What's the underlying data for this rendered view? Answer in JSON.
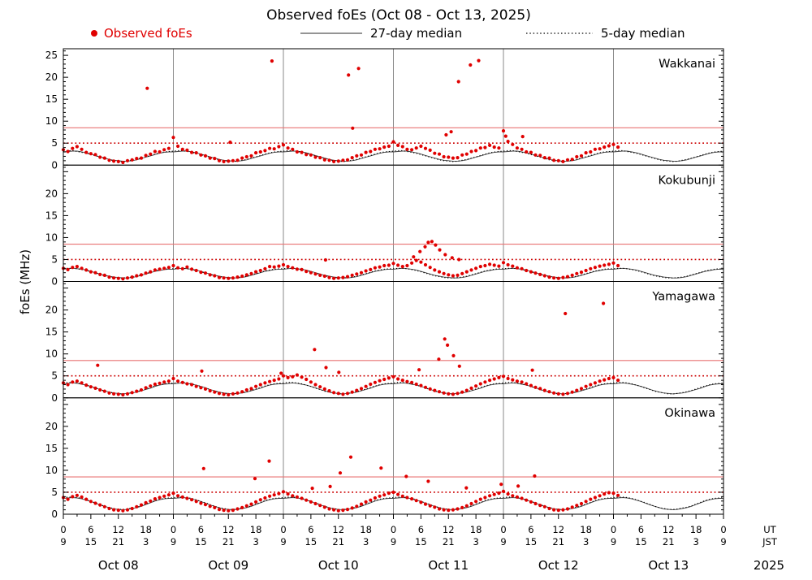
{
  "title": "Observed foEs (Oct 08 - Oct 13, 2025)",
  "legend": {
    "observed": "Observed foEs",
    "median27": "27-day median",
    "median5": "5-day median"
  },
  "y_axis_label": "foEs (MHz)",
  "footer": {
    "dates": [
      "Oct 08",
      "Oct 09",
      "Oct 10",
      "Oct 11",
      "Oct 12",
      "Oct 13"
    ],
    "year": "2025",
    "ut_label": "UT",
    "jst_label": "JST"
  },
  "x_axis": {
    "hours": [
      0,
      6,
      12,
      18,
      24,
      30,
      36,
      42,
      48,
      54,
      60,
      66,
      72,
      78,
      84,
      90,
      96,
      102,
      108,
      114,
      120,
      126,
      132,
      138,
      144
    ],
    "ut": [
      "0",
      "6",
      "12",
      "18",
      "0",
      "6",
      "12",
      "18",
      "0",
      "6",
      "12",
      "18",
      "0",
      "6",
      "12",
      "18",
      "0",
      "6",
      "12",
      "18",
      "0",
      "6",
      "12",
      "18",
      "0"
    ],
    "jst": [
      "9",
      "15",
      "21",
      "3",
      "9",
      "15",
      "21",
      "3",
      "9",
      "15",
      "21",
      "3",
      "9",
      "15",
      "21",
      "3",
      "9",
      "15",
      "21",
      "3",
      "9",
      "15",
      "21",
      "3",
      "9"
    ]
  },
  "chart_data": {
    "type": "scatter",
    "title": "Observed foEs (Oct 08 - Oct 13, 2025)",
    "ylabel": "foEs (MHz)",
    "x_range": [
      0,
      144
    ],
    "y_max": 26.5,
    "grid_hours": [
      24,
      48,
      72,
      96,
      120
    ],
    "point_color": "#e00000",
    "accent_red": "#e00000",
    "reference_lines": [
      {
        "value": 8.5,
        "style": "solid",
        "color": "#e87272"
      },
      {
        "value": 5.0,
        "style": "dotted",
        "color": "#cc0000"
      }
    ],
    "panels": [
      {
        "name": "Wakkanai",
        "yticks": [
          0,
          5,
          10,
          15,
          20,
          25
        ],
        "observed_hourly": [
          3.5,
          3.1,
          3.8,
          4.2,
          3.6,
          2.9,
          2.6,
          2.4,
          1.8,
          1.6,
          1.1,
          0.9,
          0.8,
          0.6,
          1.0,
          1.2,
          1.5,
          1.6,
          2.2,
          2.5,
          3.1,
          3.0,
          3.5,
          3.8,
          6.3,
          4.3,
          3.6,
          3.4,
          2.9,
          2.8,
          2.3,
          2.1,
          1.6,
          1.5,
          1.0,
          0.8,
          0.9,
          1.0,
          1.1,
          1.6,
          1.9,
          2.1,
          2.8,
          3.0,
          3.3,
          3.8,
          3.7,
          4.2,
          4.6,
          3.9,
          3.6,
          3.0,
          2.9,
          2.4,
          2.3,
          1.8,
          1.7,
          1.2,
          1.1,
          0.8,
          0.9,
          1.1,
          1.2,
          1.7,
          2.1,
          2.3,
          2.9,
          3.1,
          3.6,
          3.7,
          4.1,
          4.3,
          5.3,
          4.5,
          4.2,
          3.6,
          3.5,
          3.9,
          4.3,
          3.8,
          3.4,
          2.7,
          2.5,
          1.9,
          1.8,
          1.6,
          1.7,
          2.3,
          2.5,
          3.1,
          3.3,
          3.9,
          4.0,
          4.5,
          4.1,
          3.9,
          7.8,
          5.4,
          4.7,
          3.9,
          3.6,
          3.0,
          2.9,
          2.3,
          2.2,
          1.7,
          1.6,
          1.1,
          1.0,
          0.8,
          1.2,
          1.3,
          1.9,
          2.1,
          2.8,
          3.0,
          3.6,
          3.7,
          4.1,
          4.4,
          4.7,
          4.1
        ],
        "outliers": [
          [
            18.3,
            17.5
          ],
          [
            45.5,
            23.7
          ],
          [
            62.2,
            20.5
          ],
          [
            63.1,
            8.4
          ],
          [
            64.4,
            22.0
          ],
          [
            83.5,
            6.9
          ],
          [
            84.6,
            7.6
          ],
          [
            86.2,
            19.0
          ],
          [
            88.8,
            22.8
          ],
          [
            90.6,
            23.8
          ],
          [
            96.5,
            6.6
          ],
          [
            100.2,
            6.5
          ],
          [
            36.4,
            5.2
          ]
        ],
        "median27_day": [
          3.0,
          3.1,
          3.2,
          3.2,
          3.0,
          2.8,
          2.5,
          2.2,
          1.9,
          1.6,
          1.3,
          1.1,
          1.0,
          0.9,
          0.9,
          1.0,
          1.2,
          1.5,
          1.8,
          2.1,
          2.4,
          2.7,
          2.9,
          3.0
        ],
        "median5_day": [
          3.2,
          3.3,
          3.3,
          3.1,
          2.9,
          2.7,
          2.4,
          2.1,
          1.8,
          1.5,
          1.2,
          1.0,
          0.9,
          0.8,
          0.9,
          1.1,
          1.3,
          1.6,
          1.9,
          2.2,
          2.5,
          2.8,
          3.0,
          3.1
        ]
      },
      {
        "name": "Kokubunji",
        "yticks": [
          0,
          5,
          10,
          15,
          20
        ],
        "observed_hourly": [
          3.0,
          2.7,
          3.2,
          3.4,
          3.0,
          2.6,
          2.2,
          2.0,
          1.6,
          1.4,
          1.0,
          0.8,
          0.7,
          0.6,
          0.8,
          1.0,
          1.3,
          1.5,
          1.9,
          2.2,
          2.6,
          2.8,
          3.0,
          3.2,
          3.6,
          3.1,
          2.9,
          3.3,
          2.8,
          2.5,
          2.1,
          1.9,
          1.5,
          1.3,
          0.9,
          0.8,
          0.7,
          0.8,
          1.0,
          1.2,
          1.5,
          1.8,
          2.2,
          2.5,
          2.9,
          3.4,
          3.3,
          3.5,
          3.8,
          3.4,
          3.1,
          2.8,
          2.7,
          2.3,
          2.0,
          1.7,
          1.4,
          1.2,
          0.9,
          0.7,
          0.8,
          0.9,
          1.1,
          1.4,
          1.7,
          2.0,
          2.4,
          2.7,
          3.1,
          3.3,
          3.6,
          3.7,
          4.1,
          3.7,
          3.4,
          3.6,
          4.2,
          4.8,
          4.4,
          3.8,
          3.2,
          2.6,
          2.2,
          1.8,
          1.5,
          1.3,
          1.4,
          1.8,
          2.2,
          2.6,
          3.0,
          3.4,
          3.6,
          3.9,
          3.7,
          3.5,
          4.3,
          3.8,
          3.5,
          3.1,
          2.9,
          2.5,
          2.2,
          1.9,
          1.6,
          1.3,
          1.0,
          0.8,
          0.7,
          0.9,
          1.1,
          1.4,
          1.8,
          2.1,
          2.5,
          2.9,
          3.2,
          3.5,
          3.7,
          3.9,
          4.2,
          3.6
        ],
        "outliers": [
          [
            57.2,
            4.9
          ],
          [
            76.4,
            5.6
          ],
          [
            77.8,
            6.8
          ],
          [
            78.9,
            7.9
          ],
          [
            79.6,
            8.9
          ],
          [
            80.4,
            9.1
          ],
          [
            81.2,
            8.3
          ],
          [
            82.1,
            7.2
          ],
          [
            83.3,
            6.1
          ],
          [
            84.8,
            5.4
          ],
          [
            86.3,
            5.0
          ]
        ],
        "median27_day": [
          2.8,
          2.9,
          3.0,
          2.9,
          2.8,
          2.6,
          2.3,
          2.0,
          1.7,
          1.4,
          1.2,
          1.0,
          0.9,
          0.8,
          0.8,
          0.9,
          1.1,
          1.4,
          1.7,
          2.0,
          2.3,
          2.5,
          2.7,
          2.8
        ],
        "median5_day": [
          2.9,
          3.0,
          3.0,
          2.9,
          2.7,
          2.5,
          2.2,
          1.9,
          1.6,
          1.3,
          1.1,
          0.9,
          0.8,
          0.8,
          0.9,
          1.0,
          1.2,
          1.5,
          1.8,
          2.1,
          2.4,
          2.6,
          2.8,
          2.9
        ]
      },
      {
        "name": "Yamagawa",
        "yticks": [
          0,
          5,
          10,
          15,
          20
        ],
        "observed_hourly": [
          3.4,
          3.0,
          3.6,
          3.8,
          3.4,
          2.9,
          2.5,
          2.2,
          1.8,
          1.5,
          1.1,
          0.9,
          0.8,
          0.7,
          0.9,
          1.2,
          1.5,
          1.8,
          2.3,
          2.7,
          3.1,
          3.3,
          3.6,
          3.8,
          4.4,
          3.8,
          3.5,
          3.2,
          3.0,
          2.6,
          2.3,
          2.0,
          1.6,
          1.3,
          1.0,
          0.8,
          0.7,
          0.9,
          1.1,
          1.4,
          1.8,
          2.1,
          2.6,
          3.0,
          3.4,
          3.7,
          4.0,
          4.3,
          5.0,
          4.6,
          4.8,
          5.2,
          4.7,
          4.2,
          3.6,
          3.0,
          2.5,
          2.0,
          1.6,
          1.2,
          1.0,
          0.8,
          1.0,
          1.3,
          1.7,
          2.1,
          2.6,
          3.1,
          3.5,
          3.9,
          4.2,
          4.5,
          4.8,
          4.3,
          4.0,
          3.7,
          3.5,
          3.1,
          2.8,
          2.4,
          2.0,
          1.7,
          1.4,
          1.1,
          0.9,
          0.8,
          1.0,
          1.3,
          1.7,
          2.2,
          2.7,
          3.2,
          3.6,
          4.0,
          4.3,
          4.6,
          4.9,
          4.4,
          4.1,
          3.8,
          3.6,
          3.2,
          2.8,
          2.4,
          2.1,
          1.7,
          1.4,
          1.1,
          0.9,
          0.8,
          1.0,
          1.3,
          1.7,
          2.1,
          2.6,
          3.0,
          3.4,
          3.8,
          4.1,
          4.4,
          4.6,
          4.0
        ],
        "outliers": [
          [
            7.5,
            7.4
          ],
          [
            30.2,
            6.1
          ],
          [
            47.5,
            5.6
          ],
          [
            54.8,
            11.0
          ],
          [
            57.3,
            6.9
          ],
          [
            60.1,
            5.8
          ],
          [
            77.6,
            6.4
          ],
          [
            81.9,
            8.8
          ],
          [
            83.2,
            13.4
          ],
          [
            83.8,
            12.0
          ],
          [
            85.1,
            9.6
          ],
          [
            86.4,
            7.2
          ],
          [
            102.3,
            6.3
          ],
          [
            109.5,
            19.2
          ],
          [
            117.8,
            21.5
          ]
        ],
        "median27_day": [
          3.2,
          3.3,
          3.4,
          3.3,
          3.1,
          2.9,
          2.6,
          2.3,
          1.9,
          1.6,
          1.3,
          1.1,
          1.0,
          0.9,
          1.0,
          1.1,
          1.3,
          1.6,
          1.9,
          2.2,
          2.6,
          2.9,
          3.1,
          3.2
        ],
        "median5_day": [
          3.4,
          3.5,
          3.5,
          3.4,
          3.2,
          2.9,
          2.6,
          2.2,
          1.9,
          1.5,
          1.3,
          1.1,
          0.9,
          0.9,
          1.0,
          1.2,
          1.4,
          1.7,
          2.0,
          2.4,
          2.7,
          3.0,
          3.2,
          3.3
        ]
      },
      {
        "name": "Okinawa",
        "yticks": [
          0,
          5,
          10,
          15,
          20
        ],
        "observed_hourly": [
          3.8,
          3.4,
          4.0,
          4.3,
          3.9,
          3.4,
          2.9,
          2.5,
          2.1,
          1.7,
          1.3,
          1.0,
          0.9,
          0.8,
          1.0,
          1.3,
          1.7,
          2.1,
          2.6,
          3.0,
          3.5,
          3.8,
          4.1,
          4.4,
          4.8,
          4.2,
          3.9,
          3.6,
          3.3,
          2.9,
          2.5,
          2.2,
          1.8,
          1.5,
          1.1,
          0.9,
          0.8,
          0.9,
          1.2,
          1.5,
          1.9,
          2.3,
          2.8,
          3.3,
          3.7,
          4.1,
          4.4,
          4.7,
          5.1,
          4.6,
          4.2,
          3.9,
          3.6,
          3.2,
          2.8,
          2.4,
          2.0,
          1.6,
          1.2,
          1.0,
          0.8,
          0.9,
          1.1,
          1.4,
          1.8,
          2.3,
          2.8,
          3.2,
          3.7,
          4.1,
          4.4,
          4.8,
          5.0,
          4.5,
          4.1,
          3.8,
          3.5,
          3.1,
          2.7,
          2.3,
          1.9,
          1.6,
          1.2,
          1.0,
          0.9,
          1.0,
          1.2,
          1.5,
          1.9,
          2.4,
          2.9,
          3.4,
          3.8,
          4.2,
          4.5,
          4.8,
          5.2,
          4.6,
          4.2,
          3.9,
          3.6,
          3.2,
          2.8,
          2.4,
          2.0,
          1.7,
          1.3,
          1.0,
          0.9,
          1.0,
          1.2,
          1.6,
          2.0,
          2.4,
          2.9,
          3.4,
          3.8,
          4.2,
          4.6,
          4.9,
          4.8,
          4.3
        ],
        "outliers": [
          [
            30.6,
            10.4
          ],
          [
            41.8,
            8.1
          ],
          [
            44.9,
            12.1
          ],
          [
            54.3,
            5.9
          ],
          [
            58.2,
            6.3
          ],
          [
            60.4,
            9.4
          ],
          [
            62.7,
            13.0
          ],
          [
            69.3,
            10.5
          ],
          [
            74.8,
            8.6
          ],
          [
            79.6,
            7.5
          ],
          [
            87.9,
            6.0
          ],
          [
            95.5,
            6.8
          ],
          [
            99.2,
            6.4
          ],
          [
            102.8,
            8.7
          ]
        ],
        "median27_day": [
          3.6,
          3.7,
          3.8,
          3.7,
          3.5,
          3.2,
          2.9,
          2.5,
          2.1,
          1.8,
          1.5,
          1.2,
          1.1,
          1.0,
          1.1,
          1.3,
          1.5,
          1.8,
          2.2,
          2.6,
          3.0,
          3.3,
          3.5,
          3.6
        ],
        "median5_day": [
          3.8,
          3.9,
          3.9,
          3.8,
          3.6,
          3.3,
          2.9,
          2.6,
          2.2,
          1.8,
          1.5,
          1.3,
          1.1,
          1.1,
          1.2,
          1.4,
          1.6,
          1.9,
          2.3,
          2.7,
          3.1,
          3.4,
          3.6,
          3.7
        ]
      }
    ]
  }
}
